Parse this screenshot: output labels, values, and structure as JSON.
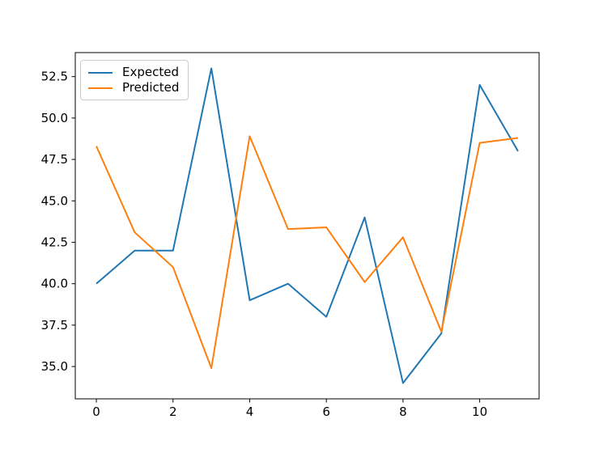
{
  "chart_data": {
    "type": "line",
    "title": "",
    "xlabel": "",
    "ylabel": "",
    "grid": false,
    "background": "#ffffff",
    "axes_color": "#000000",
    "x": [
      0,
      1,
      2,
      3,
      4,
      5,
      6,
      7,
      8,
      9,
      10,
      11
    ],
    "series": [
      {
        "name": "Expected",
        "color": "#1f77b4",
        "values": [
          40.0,
          42.0,
          42.0,
          53.0,
          39.0,
          40.0,
          38.0,
          44.0,
          34.0,
          37.0,
          52.0,
          48.0
        ]
      },
      {
        "name": "Predicted",
        "color": "#ff7f0e",
        "values": [
          48.3,
          43.1,
          41.0,
          34.9,
          48.9,
          43.3,
          43.4,
          40.1,
          42.8,
          37.1,
          48.5,
          48.8
        ]
      }
    ],
    "xlim": [
      -0.55,
      11.55
    ],
    "ylim": [
      33.05,
      53.95
    ],
    "xticks": [
      0,
      2,
      4,
      6,
      8,
      10
    ],
    "xtick_labels": [
      "0",
      "2",
      "4",
      "6",
      "8",
      "10"
    ],
    "yticks": [
      35.0,
      37.5,
      40.0,
      42.5,
      45.0,
      47.5,
      50.0,
      52.5
    ],
    "ytick_labels": [
      "35.0",
      "37.5",
      "40.0",
      "42.5",
      "45.0",
      "47.5",
      "50.0",
      "52.5"
    ],
    "legend": {
      "position": "upper-left",
      "entries": [
        "Expected",
        "Predicted"
      ]
    }
  }
}
